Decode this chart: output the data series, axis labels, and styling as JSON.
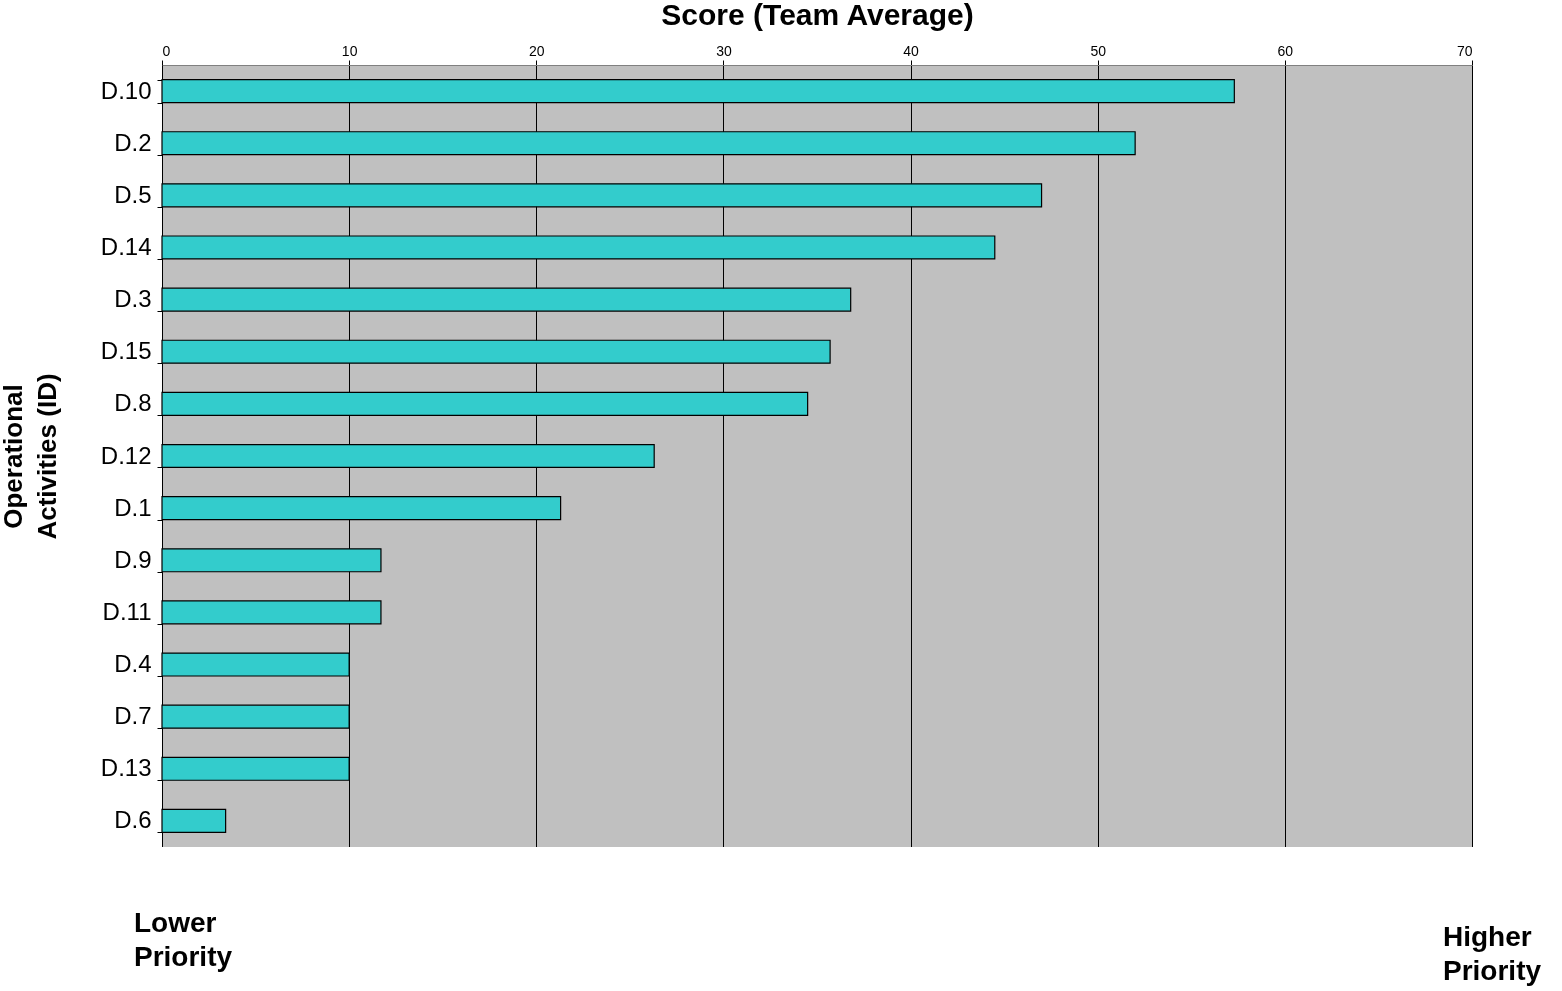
{
  "chart_data": {
    "type": "bar",
    "orientation": "horizontal",
    "xlabel": "Score (Team Average)",
    "ylabel": "Operational Activities (ID)",
    "categories": [
      "D.10",
      "D.2",
      "D.5",
      "D.14",
      "D.3",
      "D.15",
      "D.8",
      "D.12",
      "D.1",
      "D.9",
      "D.11",
      "D.4",
      "D.7",
      "D.13",
      "D.6"
    ],
    "values": [
      57.3,
      52,
      47,
      44.5,
      36.8,
      35.7,
      34.5,
      26.3,
      21.3,
      11.7,
      11.7,
      10,
      10,
      10,
      3.4
    ],
    "color": "#33cccc",
    "xlim": [
      0,
      70
    ],
    "xticks": [
      0,
      10,
      20,
      30,
      40,
      50,
      60,
      70
    ],
    "grid": "x",
    "annotations": [
      "Lower Priority",
      "Higher Priority"
    ]
  }
}
